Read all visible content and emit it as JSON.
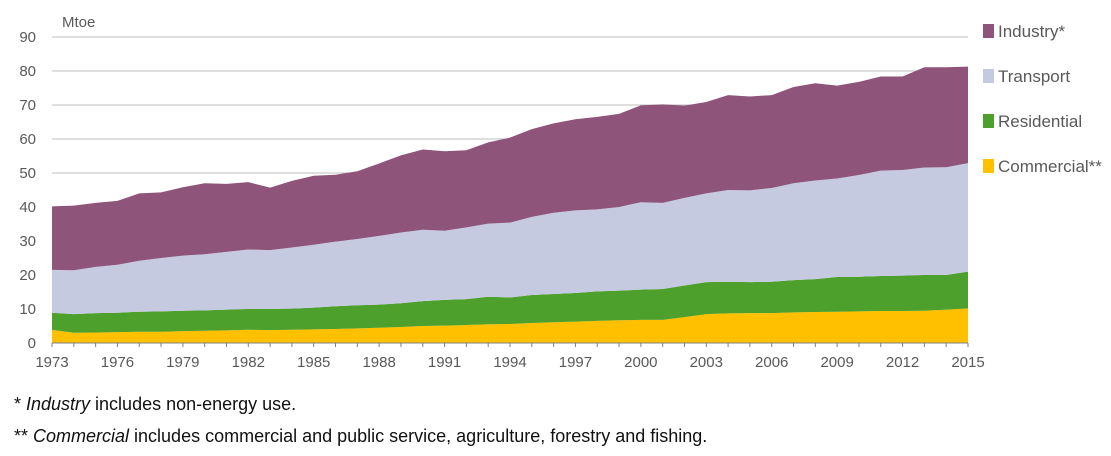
{
  "chart_data": {
    "type": "area",
    "stacked": true,
    "unit_label": "Mtoe",
    "x": [
      1973,
      1974,
      1975,
      1976,
      1977,
      1978,
      1979,
      1980,
      1981,
      1982,
      1983,
      1984,
      1985,
      1986,
      1987,
      1988,
      1989,
      1990,
      1991,
      1992,
      1993,
      1994,
      1995,
      1996,
      1997,
      1998,
      1999,
      2000,
      2001,
      2002,
      2003,
      2004,
      2005,
      2006,
      2007,
      2008,
      2009,
      2010,
      2011,
      2012,
      2013,
      2014,
      2015
    ],
    "xticks": [
      "1973",
      "1976",
      "1979",
      "1982",
      "1985",
      "1988",
      "1991",
      "1994",
      "1997",
      "2000",
      "2003",
      "2006",
      "2009",
      "2012",
      "2015"
    ],
    "yticks": [
      "0",
      "10",
      "20",
      "30",
      "40",
      "50",
      "60",
      "70",
      "80",
      "90"
    ],
    "ylim": [
      0,
      90
    ],
    "grid": true,
    "legend_position": "right",
    "series": [
      {
        "name": "Commercial**",
        "color": "#ffc000",
        "values": [
          3.9,
          3.0,
          3.1,
          3.2,
          3.3,
          3.3,
          3.5,
          3.6,
          3.7,
          3.9,
          3.8,
          3.9,
          4.0,
          4.1,
          4.3,
          4.5,
          4.7,
          5.0,
          5.1,
          5.3,
          5.5,
          5.6,
          5.9,
          6.1,
          6.3,
          6.5,
          6.7,
          6.8,
          6.8,
          7.6,
          8.5,
          8.7,
          8.8,
          8.8,
          9.0,
          9.1,
          9.2,
          9.3,
          9.4,
          9.4,
          9.5,
          9.8,
          10.2
        ]
      },
      {
        "name": "Residential",
        "color": "#4ca02b",
        "values": [
          5.0,
          5.5,
          5.7,
          5.7,
          5.9,
          6.0,
          6.0,
          6.0,
          6.1,
          6.1,
          6.2,
          6.2,
          6.4,
          6.7,
          6.8,
          6.8,
          7.0,
          7.3,
          7.6,
          7.6,
          8.1,
          7.8,
          8.2,
          8.3,
          8.4,
          8.7,
          8.7,
          8.9,
          9.1,
          9.3,
          9.4,
          9.3,
          9.1,
          9.2,
          9.5,
          9.7,
          10.2,
          10.2,
          10.3,
          10.4,
          10.5,
          10.2,
          10.8
        ]
      },
      {
        "name": "Transport",
        "color": "#c5cae0",
        "values": [
          12.6,
          12.9,
          13.6,
          14.1,
          15.0,
          15.7,
          16.2,
          16.5,
          17.0,
          17.5,
          17.3,
          18.0,
          18.5,
          19.0,
          19.5,
          20.2,
          20.8,
          21.0,
          20.3,
          21.1,
          21.5,
          22.0,
          23.0,
          23.9,
          24.3,
          24.1,
          24.6,
          25.7,
          25.3,
          25.8,
          26.1,
          27.0,
          27.0,
          27.6,
          28.5,
          29.0,
          29.0,
          29.9,
          31.0,
          31.1,
          31.6,
          31.7,
          31.9
        ]
      },
      {
        "name": "Industry*",
        "color": "#8e5479",
        "values": [
          18.7,
          19.0,
          18.8,
          18.8,
          19.8,
          19.3,
          20.1,
          20.9,
          20.0,
          19.8,
          18.4,
          19.6,
          20.3,
          19.7,
          19.9,
          21.3,
          22.7,
          23.6,
          23.4,
          22.7,
          23.9,
          25.0,
          25.8,
          26.3,
          26.8,
          27.2,
          27.4,
          28.5,
          29.0,
          27.1,
          26.9,
          27.9,
          27.6,
          27.3,
          28.3,
          28.6,
          27.3,
          27.4,
          27.7,
          27.5,
          29.5,
          29.4,
          28.4
        ]
      }
    ],
    "legend": [
      {
        "label": "Industry*",
        "color": "#8e5479"
      },
      {
        "label": "Transport",
        "color": "#c5cae0"
      },
      {
        "label": "Residential",
        "color": "#4ca02b"
      },
      {
        "label": "Commercial**",
        "color": "#ffc000"
      }
    ]
  },
  "notes": {
    "n1_prefix": "* ",
    "n1_italic": "Industry",
    "n1_rest": " includes non-energy use.",
    "n2_prefix": "** ",
    "n2_italic": "Commercial",
    "n2_rest": " includes commercial and public service, agriculture, forestry and fishing."
  }
}
